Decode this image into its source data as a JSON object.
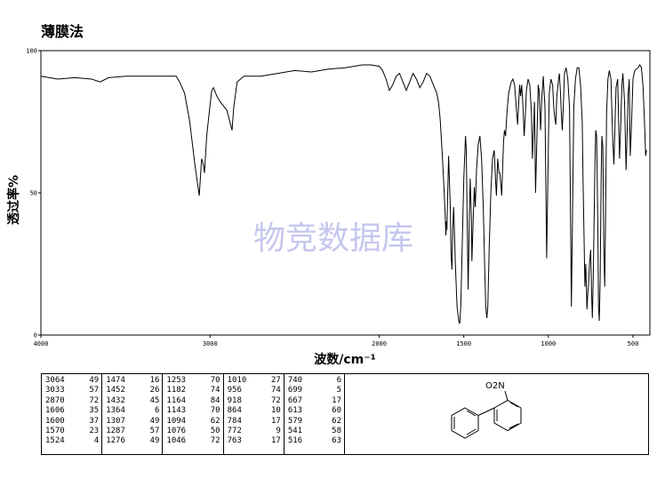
{
  "method": "薄膜法",
  "watermark": "物竞数据库",
  "structure_label": "O2N",
  "chart_data": {
    "type": "line",
    "title": "",
    "xlabel": "波数/cm⁻¹",
    "ylabel": "透过率%",
    "xlim": [
      4000,
      400
    ],
    "ylim": [
      0,
      100
    ],
    "x_ticks": [
      "4000",
      "3000",
      "2000",
      "1500",
      "1000",
      "500"
    ],
    "y_ticks": [
      "0",
      "50",
      "100"
    ],
    "series": [
      {
        "points": [
          [
            4000,
            91
          ],
          [
            3900,
            90
          ],
          [
            3800,
            90.5
          ],
          [
            3700,
            90
          ],
          [
            3650,
            89
          ],
          [
            3600,
            90.5
          ],
          [
            3500,
            91
          ],
          [
            3400,
            91
          ],
          [
            3300,
            91
          ],
          [
            3200,
            91
          ],
          [
            3180,
            89
          ],
          [
            3150,
            85
          ],
          [
            3120,
            75
          ],
          [
            3090,
            60
          ],
          [
            3064,
            49
          ],
          [
            3050,
            62
          ],
          [
            3040,
            60
          ],
          [
            3033,
            57
          ],
          [
            3020,
            70
          ],
          [
            3000,
            81
          ],
          [
            2990,
            86
          ],
          [
            2980,
            87
          ],
          [
            2960,
            84
          ],
          [
            2940,
            82
          ],
          [
            2900,
            79
          ],
          [
            2870,
            72
          ],
          [
            2860,
            80
          ],
          [
            2840,
            89
          ],
          [
            2800,
            91
          ],
          [
            2700,
            91
          ],
          [
            2600,
            92
          ],
          [
            2500,
            93
          ],
          [
            2400,
            92.5
          ],
          [
            2300,
            93.5
          ],
          [
            2200,
            94
          ],
          [
            2100,
            95
          ],
          [
            2050,
            95
          ],
          [
            2000,
            94.5
          ],
          [
            1980,
            93
          ],
          [
            1960,
            90
          ],
          [
            1940,
            86
          ],
          [
            1920,
            88
          ],
          [
            1900,
            91
          ],
          [
            1880,
            92
          ],
          [
            1860,
            89
          ],
          [
            1840,
            86
          ],
          [
            1820,
            89
          ],
          [
            1800,
            92
          ],
          [
            1780,
            90
          ],
          [
            1760,
            87
          ],
          [
            1740,
            89
          ],
          [
            1720,
            92
          ],
          [
            1700,
            91
          ],
          [
            1680,
            88
          ],
          [
            1660,
            85
          ],
          [
            1650,
            82
          ],
          [
            1640,
            76
          ],
          [
            1630,
            66
          ],
          [
            1620,
            55
          ],
          [
            1610,
            42
          ],
          [
            1606,
            35
          ],
          [
            1603,
            40
          ],
          [
            1600,
            37
          ],
          [
            1595,
            50
          ],
          [
            1590,
            63
          ],
          [
            1580,
            45
          ],
          [
            1575,
            28
          ],
          [
            1570,
            23
          ],
          [
            1565,
            38
          ],
          [
            1560,
            45
          ],
          [
            1550,
            25
          ],
          [
            1540,
            10
          ],
          [
            1530,
            5
          ],
          [
            1524,
            4
          ],
          [
            1518,
            10
          ],
          [
            1510,
            30
          ],
          [
            1500,
            55
          ],
          [
            1490,
            70
          ],
          [
            1485,
            65
          ],
          [
            1480,
            40
          ],
          [
            1474,
            16
          ],
          [
            1468,
            40
          ],
          [
            1462,
            55
          ],
          [
            1455,
            40
          ],
          [
            1452,
            26
          ],
          [
            1445,
            40
          ],
          [
            1438,
            52
          ],
          [
            1432,
            45
          ],
          [
            1425,
            58
          ],
          [
            1415,
            67
          ],
          [
            1405,
            70
          ],
          [
            1395,
            62
          ],
          [
            1385,
            45
          ],
          [
            1375,
            20
          ],
          [
            1370,
            10
          ],
          [
            1364,
            6
          ],
          [
            1358,
            10
          ],
          [
            1350,
            30
          ],
          [
            1340,
            50
          ],
          [
            1330,
            62
          ],
          [
            1320,
            65
          ],
          [
            1310,
            52
          ],
          [
            1307,
            49
          ],
          [
            1300,
            62
          ],
          [
            1292,
            57
          ],
          [
            1287,
            57
          ],
          [
            1280,
            52
          ],
          [
            1276,
            49
          ],
          [
            1270,
            60
          ],
          [
            1265,
            68
          ],
          [
            1260,
            72
          ],
          [
            1253,
            70
          ],
          [
            1245,
            78
          ],
          [
            1235,
            85
          ],
          [
            1220,
            89
          ],
          [
            1210,
            90
          ],
          [
            1200,
            88
          ],
          [
            1190,
            80
          ],
          [
            1182,
            74
          ],
          [
            1175,
            82
          ],
          [
            1170,
            88
          ],
          [
            1164,
            84
          ],
          [
            1158,
            88
          ],
          [
            1150,
            80
          ],
          [
            1143,
            70
          ],
          [
            1136,
            78
          ],
          [
            1130,
            86
          ],
          [
            1120,
            90
          ],
          [
            1110,
            88
          ],
          [
            1100,
            78
          ],
          [
            1094,
            62
          ],
          [
            1088,
            72
          ],
          [
            1082,
            82
          ],
          [
            1076,
            50
          ],
          [
            1070,
            64
          ],
          [
            1060,
            88
          ],
          [
            1055,
            86
          ],
          [
            1046,
            72
          ],
          [
            1040,
            82
          ],
          [
            1030,
            91
          ],
          [
            1020,
            80
          ],
          [
            1010,
            27
          ],
          [
            1002,
            60
          ],
          [
            995,
            85
          ],
          [
            985,
            90
          ],
          [
            975,
            88
          ],
          [
            968,
            80
          ],
          [
            962,
            76
          ],
          [
            956,
            74
          ],
          [
            950,
            84
          ],
          [
            940,
            90
          ],
          [
            935,
            92
          ],
          [
            928,
            85
          ],
          [
            925,
            80
          ],
          [
            918,
            72
          ],
          [
            912,
            80
          ],
          [
            905,
            92
          ],
          [
            895,
            94
          ],
          [
            885,
            90
          ],
          [
            875,
            80
          ],
          [
            864,
            10
          ],
          [
            858,
            40
          ],
          [
            850,
            80
          ],
          [
            840,
            90
          ],
          [
            830,
            94
          ],
          [
            820,
            94
          ],
          [
            810,
            88
          ],
          [
            800,
            75
          ],
          [
            795,
            55
          ],
          [
            788,
            30
          ],
          [
            784,
            17
          ],
          [
            779,
            25
          ],
          [
            772,
            9
          ],
          [
            767,
            15
          ],
          [
            763,
            17
          ],
          [
            757,
            25
          ],
          [
            750,
            30
          ],
          [
            745,
            15
          ],
          [
            740,
            6
          ],
          [
            735,
            20
          ],
          [
            725,
            60
          ],
          [
            720,
            72
          ],
          [
            715,
            70
          ],
          [
            708,
            40
          ],
          [
            704,
            10
          ],
          [
            699,
            5
          ],
          [
            694,
            20
          ],
          [
            688,
            55
          ],
          [
            684,
            70
          ],
          [
            678,
            66
          ],
          [
            672,
            30
          ],
          [
            667,
            17
          ],
          [
            662,
            40
          ],
          [
            656,
            78
          ],
          [
            648,
            90
          ],
          [
            640,
            93
          ],
          [
            630,
            90
          ],
          [
            620,
            70
          ],
          [
            613,
            60
          ],
          [
            607,
            72
          ],
          [
            600,
            87
          ],
          [
            590,
            90
          ],
          [
            585,
            75
          ],
          [
            579,
            62
          ],
          [
            572,
            75
          ],
          [
            565,
            88
          ],
          [
            560,
            92
          ],
          [
            550,
            82
          ],
          [
            541,
            58
          ],
          [
            535,
            70
          ],
          [
            528,
            85
          ],
          [
            522,
            90
          ],
          [
            516,
            63
          ],
          [
            510,
            72
          ],
          [
            500,
            90
          ],
          [
            490,
            93
          ],
          [
            470,
            94
          ],
          [
            460,
            95
          ],
          [
            450,
            94
          ],
          [
            440,
            87
          ],
          [
            430,
            72
          ],
          [
            425,
            63
          ],
          [
            420,
            65
          ]
        ]
      }
    ],
    "peak_table": [
      [
        [
          "3064",
          "49"
        ],
        [
          "3033",
          "57"
        ],
        [
          "2870",
          "72"
        ],
        [
          "1606",
          "35"
        ],
        [
          "1600",
          "37"
        ],
        [
          "1570",
          "23"
        ],
        [
          "1524",
          "4"
        ]
      ],
      [
        [
          "1474",
          "16"
        ],
        [
          "1452",
          "26"
        ],
        [
          "1432",
          "45"
        ],
        [
          "1364",
          "6"
        ],
        [
          "1307",
          "49"
        ],
        [
          "1287",
          "57"
        ],
        [
          "1276",
          "49"
        ]
      ],
      [
        [
          "1253",
          "70"
        ],
        [
          "1182",
          "74"
        ],
        [
          "1164",
          "84"
        ],
        [
          "1143",
          "70"
        ],
        [
          "1094",
          "62"
        ],
        [
          "1076",
          "50"
        ],
        [
          "1046",
          "72"
        ]
      ],
      [
        [
          "1010",
          "27"
        ],
        [
          "956",
          "74"
        ],
        [
          "918",
          "72"
        ],
        [
          "864",
          "10"
        ],
        [
          "784",
          "17"
        ],
        [
          "772",
          "9"
        ],
        [
          "763",
          "17"
        ]
      ],
      [
        [
          "740",
          "6"
        ],
        [
          "699",
          "5"
        ],
        [
          "667",
          "17"
        ],
        [
          "613",
          "60"
        ],
        [
          "579",
          "62"
        ],
        [
          "541",
          "58"
        ],
        [
          "516",
          "63"
        ]
      ]
    ]
  }
}
